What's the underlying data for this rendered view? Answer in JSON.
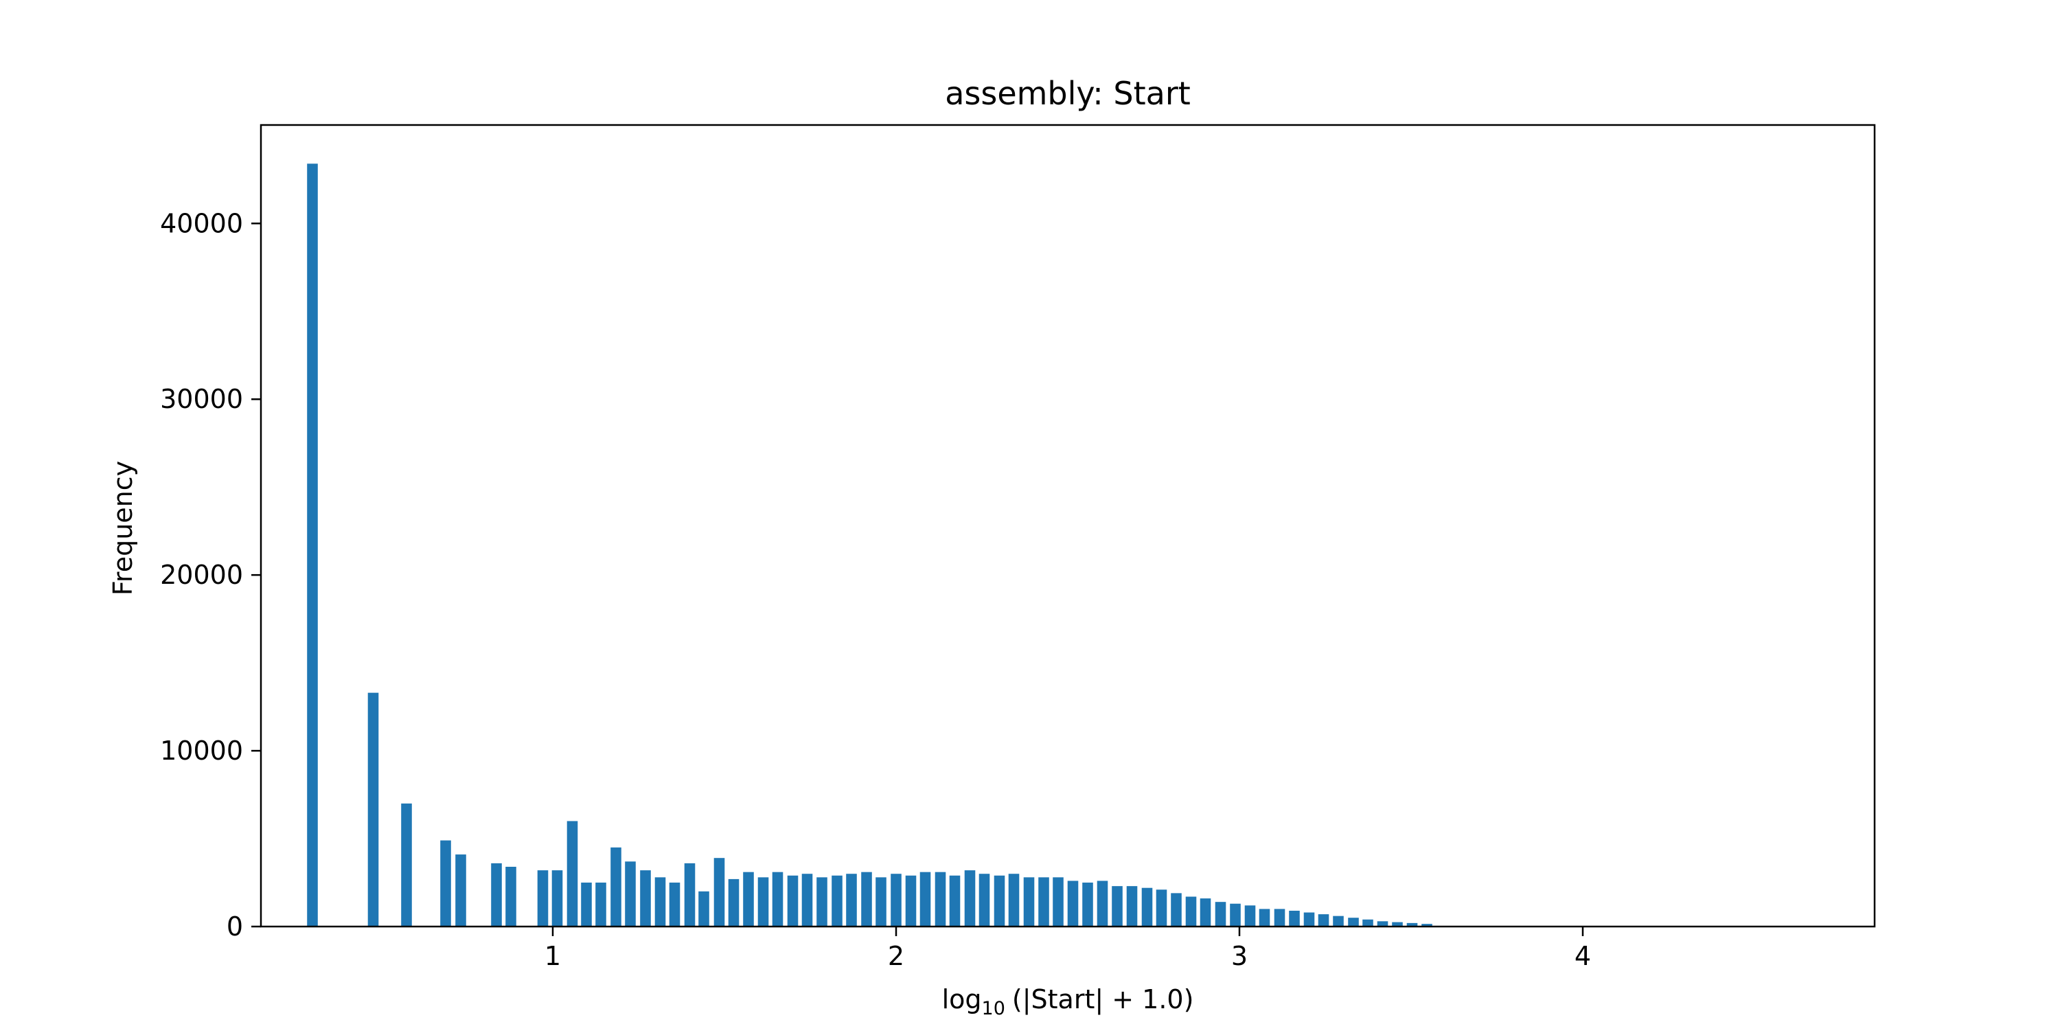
{
  "chart_data": {
    "type": "bar",
    "title": "assembly: Start",
    "xlabel": {
      "prefix": "log",
      "subscript": "10",
      "suffix": "(|Start| + 1.0)"
    },
    "ylabel": "Frequency",
    "xlim": [
      0.15,
      4.85
    ],
    "ylim": [
      0,
      45600
    ],
    "xticks": [
      {
        "value": 1,
        "label": "1"
      },
      {
        "value": 2,
        "label": "2"
      },
      {
        "value": 3,
        "label": "3"
      },
      {
        "value": 4,
        "label": "4"
      }
    ],
    "yticks": [
      {
        "value": 0,
        "label": "0"
      },
      {
        "value": 10000,
        "label": "10000"
      },
      {
        "value": 20000,
        "label": "20000"
      },
      {
        "value": 30000,
        "label": "30000"
      },
      {
        "value": 40000,
        "label": "40000"
      }
    ],
    "grid": false,
    "bar_color": "#1f77b4",
    "bin_width": 0.0354,
    "x": [
      0.3,
      0.477,
      0.574,
      0.688,
      0.732,
      0.836,
      0.878,
      0.971,
      1.013,
      1.057,
      1.098,
      1.14,
      1.184,
      1.226,
      1.27,
      1.313,
      1.355,
      1.399,
      1.44,
      1.485,
      1.527,
      1.57,
      1.613,
      1.655,
      1.699,
      1.741,
      1.784,
      1.828,
      1.87,
      1.914,
      1.956,
      2.0,
      2.043,
      2.085,
      2.129,
      2.171,
      2.215,
      2.257,
      2.301,
      2.343,
      2.387,
      2.43,
      2.472,
      2.515,
      2.558,
      2.601,
      2.644,
      2.687,
      2.731,
      2.773,
      2.816,
      2.859,
      2.901,
      2.945,
      2.988,
      3.031,
      3.073,
      3.117,
      3.16,
      3.203,
      3.245,
      3.288,
      3.332,
      3.374,
      3.417,
      3.46,
      3.503,
      3.546
    ],
    "values": [
      43400,
      13300,
      7000,
      4900,
      4100,
      3600,
      3400,
      3200,
      3200,
      6000,
      2500,
      2500,
      4500,
      3700,
      3200,
      2800,
      2500,
      3600,
      2000,
      3900,
      2700,
      3100,
      2800,
      3100,
      2900,
      3000,
      2800,
      2900,
      3000,
      3100,
      2800,
      3000,
      2900,
      3100,
      3100,
      2900,
      3200,
      3000,
      2900,
      3000,
      2800,
      2800,
      2800,
      2600,
      2500,
      2600,
      2300,
      2300,
      2200,
      2100,
      1900,
      1700,
      1600,
      1400,
      1300,
      1200,
      1000,
      1000,
      900,
      800,
      700,
      600,
      500,
      400,
      300,
      250,
      200,
      150
    ]
  }
}
